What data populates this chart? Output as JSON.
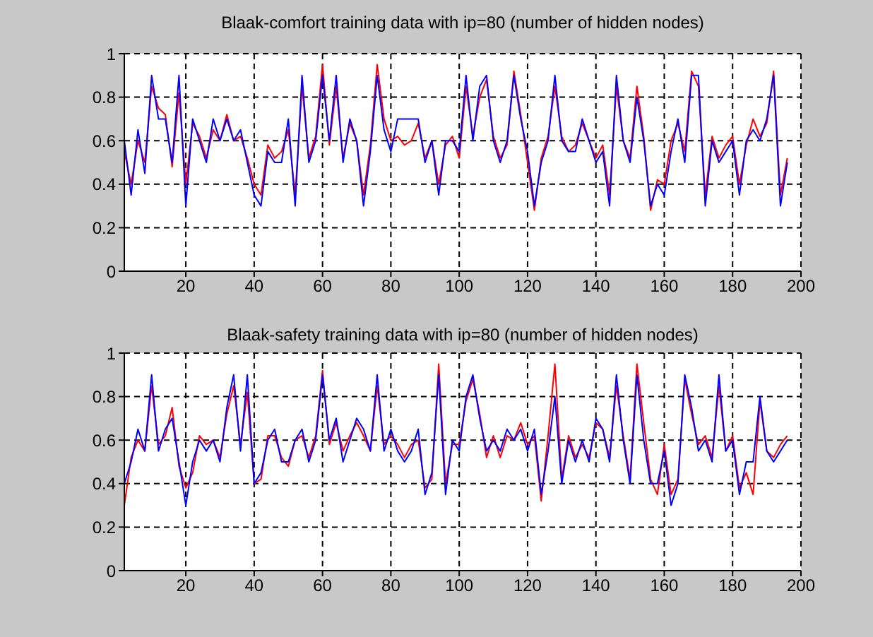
{
  "chart_data": [
    {
      "type": "line",
      "title": "Blaak-comfort training data with ip=80 (number of hidden nodes)",
      "marker": "none",
      "grid": true,
      "xlim": [
        2,
        200
      ],
      "xticks": [
        20,
        40,
        60,
        80,
        100,
        120,
        140,
        160,
        180,
        200
      ],
      "ylim": [
        0,
        1
      ],
      "yticks": [
        0,
        0.2,
        0.4,
        0.6,
        0.8,
        1
      ],
      "x": [
        2,
        4,
        6,
        8,
        10,
        12,
        14,
        16,
        18,
        20,
        22,
        24,
        26,
        28,
        30,
        32,
        34,
        36,
        38,
        40,
        42,
        44,
        46,
        48,
        50,
        52,
        54,
        56,
        58,
        60,
        62,
        64,
        66,
        68,
        70,
        72,
        74,
        76,
        78,
        80,
        82,
        84,
        86,
        88,
        90,
        92,
        94,
        96,
        98,
        100,
        102,
        104,
        106,
        108,
        110,
        112,
        114,
        116,
        118,
        120,
        122,
        124,
        126,
        128,
        130,
        132,
        134,
        136,
        138,
        140,
        142,
        144,
        146,
        148,
        150,
        152,
        154,
        156,
        158,
        160,
        162,
        164,
        166,
        168,
        170,
        172,
        174,
        176,
        178,
        180,
        182,
        184,
        186,
        188,
        190,
        192,
        194,
        196
      ],
      "series": [
        {
          "color": "#ff0000",
          "values": [
            0.55,
            0.4,
            0.6,
            0.5,
            0.85,
            0.75,
            0.72,
            0.48,
            0.82,
            0.4,
            0.68,
            0.62,
            0.52,
            0.65,
            0.6,
            0.72,
            0.6,
            0.62,
            0.52,
            0.4,
            0.35,
            0.58,
            0.52,
            0.55,
            0.65,
            0.35,
            0.85,
            0.52,
            0.62,
            0.95,
            0.58,
            0.85,
            0.52,
            0.68,
            0.6,
            0.35,
            0.58,
            0.95,
            0.7,
            0.6,
            0.62,
            0.58,
            0.6,
            0.68,
            0.52,
            0.6,
            0.4,
            0.58,
            0.62,
            0.52,
            0.85,
            0.62,
            0.8,
            0.88,
            0.62,
            0.52,
            0.58,
            0.92,
            0.72,
            0.5,
            0.28,
            0.52,
            0.62,
            0.85,
            0.62,
            0.55,
            0.58,
            0.68,
            0.6,
            0.52,
            0.58,
            0.35,
            0.85,
            0.6,
            0.52,
            0.85,
            0.62,
            0.28,
            0.42,
            0.4,
            0.6,
            0.68,
            0.55,
            0.92,
            0.85,
            0.35,
            0.62,
            0.52,
            0.58,
            0.62,
            0.4,
            0.58,
            0.7,
            0.62,
            0.68,
            0.92,
            0.35,
            0.52
          ]
        },
        {
          "color": "#0000ff",
          "values": [
            0.6,
            0.35,
            0.65,
            0.45,
            0.9,
            0.7,
            0.7,
            0.5,
            0.9,
            0.3,
            0.7,
            0.6,
            0.5,
            0.7,
            0.6,
            0.7,
            0.6,
            0.65,
            0.5,
            0.35,
            0.3,
            0.55,
            0.5,
            0.5,
            0.7,
            0.3,
            0.9,
            0.5,
            0.6,
            0.9,
            0.6,
            0.9,
            0.5,
            0.7,
            0.6,
            0.3,
            0.55,
            0.9,
            0.65,
            0.55,
            0.7,
            0.7,
            0.7,
            0.7,
            0.5,
            0.6,
            0.35,
            0.6,
            0.6,
            0.55,
            0.9,
            0.6,
            0.85,
            0.9,
            0.6,
            0.5,
            0.6,
            0.9,
            0.7,
            0.55,
            0.3,
            0.5,
            0.6,
            0.9,
            0.6,
            0.55,
            0.55,
            0.7,
            0.6,
            0.5,
            0.55,
            0.3,
            0.9,
            0.6,
            0.5,
            0.8,
            0.6,
            0.3,
            0.4,
            0.35,
            0.55,
            0.7,
            0.5,
            0.9,
            0.9,
            0.3,
            0.6,
            0.5,
            0.55,
            0.6,
            0.35,
            0.6,
            0.65,
            0.6,
            0.7,
            0.9,
            0.3,
            0.5
          ]
        }
      ]
    },
    {
      "type": "line",
      "title": "Blaak-safety training data with ip=80 (number of hidden nodes)",
      "marker": "none",
      "grid": true,
      "xlim": [
        2,
        200
      ],
      "xticks": [
        20,
        40,
        60,
        80,
        100,
        120,
        140,
        160,
        180,
        200
      ],
      "ylim": [
        0,
        1
      ],
      "yticks": [
        0,
        0.2,
        0.4,
        0.6,
        0.8,
        1
      ],
      "x": [
        2,
        4,
        6,
        8,
        10,
        12,
        14,
        16,
        18,
        20,
        22,
        24,
        26,
        28,
        30,
        32,
        34,
        36,
        38,
        40,
        42,
        44,
        46,
        48,
        50,
        52,
        54,
        56,
        58,
        60,
        62,
        64,
        66,
        68,
        70,
        72,
        74,
        76,
        78,
        80,
        82,
        84,
        86,
        88,
        90,
        92,
        94,
        96,
        98,
        100,
        102,
        104,
        106,
        108,
        110,
        112,
        114,
        116,
        118,
        120,
        122,
        124,
        126,
        128,
        130,
        132,
        134,
        136,
        138,
        140,
        142,
        144,
        146,
        148,
        150,
        152,
        154,
        156,
        158,
        160,
        162,
        164,
        166,
        168,
        170,
        172,
        174,
        176,
        178,
        180,
        182,
        184,
        186,
        188,
        190,
        192,
        194,
        196
      ],
      "series": [
        {
          "color": "#ff0000",
          "values": [
            0.3,
            0.52,
            0.6,
            0.55,
            0.85,
            0.58,
            0.62,
            0.75,
            0.48,
            0.38,
            0.45,
            0.62,
            0.58,
            0.6,
            0.52,
            0.72,
            0.85,
            0.58,
            0.82,
            0.4,
            0.42,
            0.62,
            0.62,
            0.52,
            0.48,
            0.6,
            0.62,
            0.52,
            0.62,
            0.92,
            0.58,
            0.68,
            0.55,
            0.62,
            0.68,
            0.62,
            0.55,
            0.85,
            0.58,
            0.62,
            0.58,
            0.52,
            0.58,
            0.6,
            0.38,
            0.42,
            0.95,
            0.4,
            0.58,
            0.58,
            0.78,
            0.88,
            0.72,
            0.52,
            0.62,
            0.52,
            0.62,
            0.6,
            0.68,
            0.58,
            0.62,
            0.32,
            0.62,
            0.95,
            0.42,
            0.62,
            0.52,
            0.58,
            0.52,
            0.68,
            0.65,
            0.52,
            0.85,
            0.62,
            0.42,
            0.95,
            0.68,
            0.42,
            0.35,
            0.58,
            0.35,
            0.42,
            0.88,
            0.72,
            0.58,
            0.62,
            0.52,
            0.85,
            0.55,
            0.62,
            0.38,
            0.45,
            0.35,
            0.78,
            0.55,
            0.52,
            0.58,
            0.62
          ]
        },
        {
          "color": "#0000ff",
          "values": [
            0.4,
            0.5,
            0.65,
            0.55,
            0.9,
            0.55,
            0.65,
            0.7,
            0.5,
            0.3,
            0.5,
            0.6,
            0.55,
            0.6,
            0.5,
            0.75,
            0.9,
            0.55,
            0.9,
            0.4,
            0.45,
            0.6,
            0.65,
            0.5,
            0.5,
            0.6,
            0.65,
            0.5,
            0.6,
            0.9,
            0.6,
            0.7,
            0.5,
            0.6,
            0.7,
            0.65,
            0.55,
            0.9,
            0.55,
            0.65,
            0.55,
            0.5,
            0.55,
            0.65,
            0.35,
            0.45,
            0.9,
            0.35,
            0.6,
            0.55,
            0.8,
            0.9,
            0.7,
            0.55,
            0.6,
            0.55,
            0.65,
            0.6,
            0.65,
            0.55,
            0.65,
            0.35,
            0.55,
            0.8,
            0.4,
            0.6,
            0.5,
            0.6,
            0.5,
            0.7,
            0.65,
            0.5,
            0.9,
            0.6,
            0.4,
            0.9,
            0.6,
            0.4,
            0.4,
            0.55,
            0.3,
            0.4,
            0.9,
            0.75,
            0.55,
            0.6,
            0.5,
            0.9,
            0.55,
            0.6,
            0.35,
            0.5,
            0.5,
            0.8,
            0.55,
            0.5,
            0.55,
            0.6
          ]
        }
      ]
    }
  ]
}
